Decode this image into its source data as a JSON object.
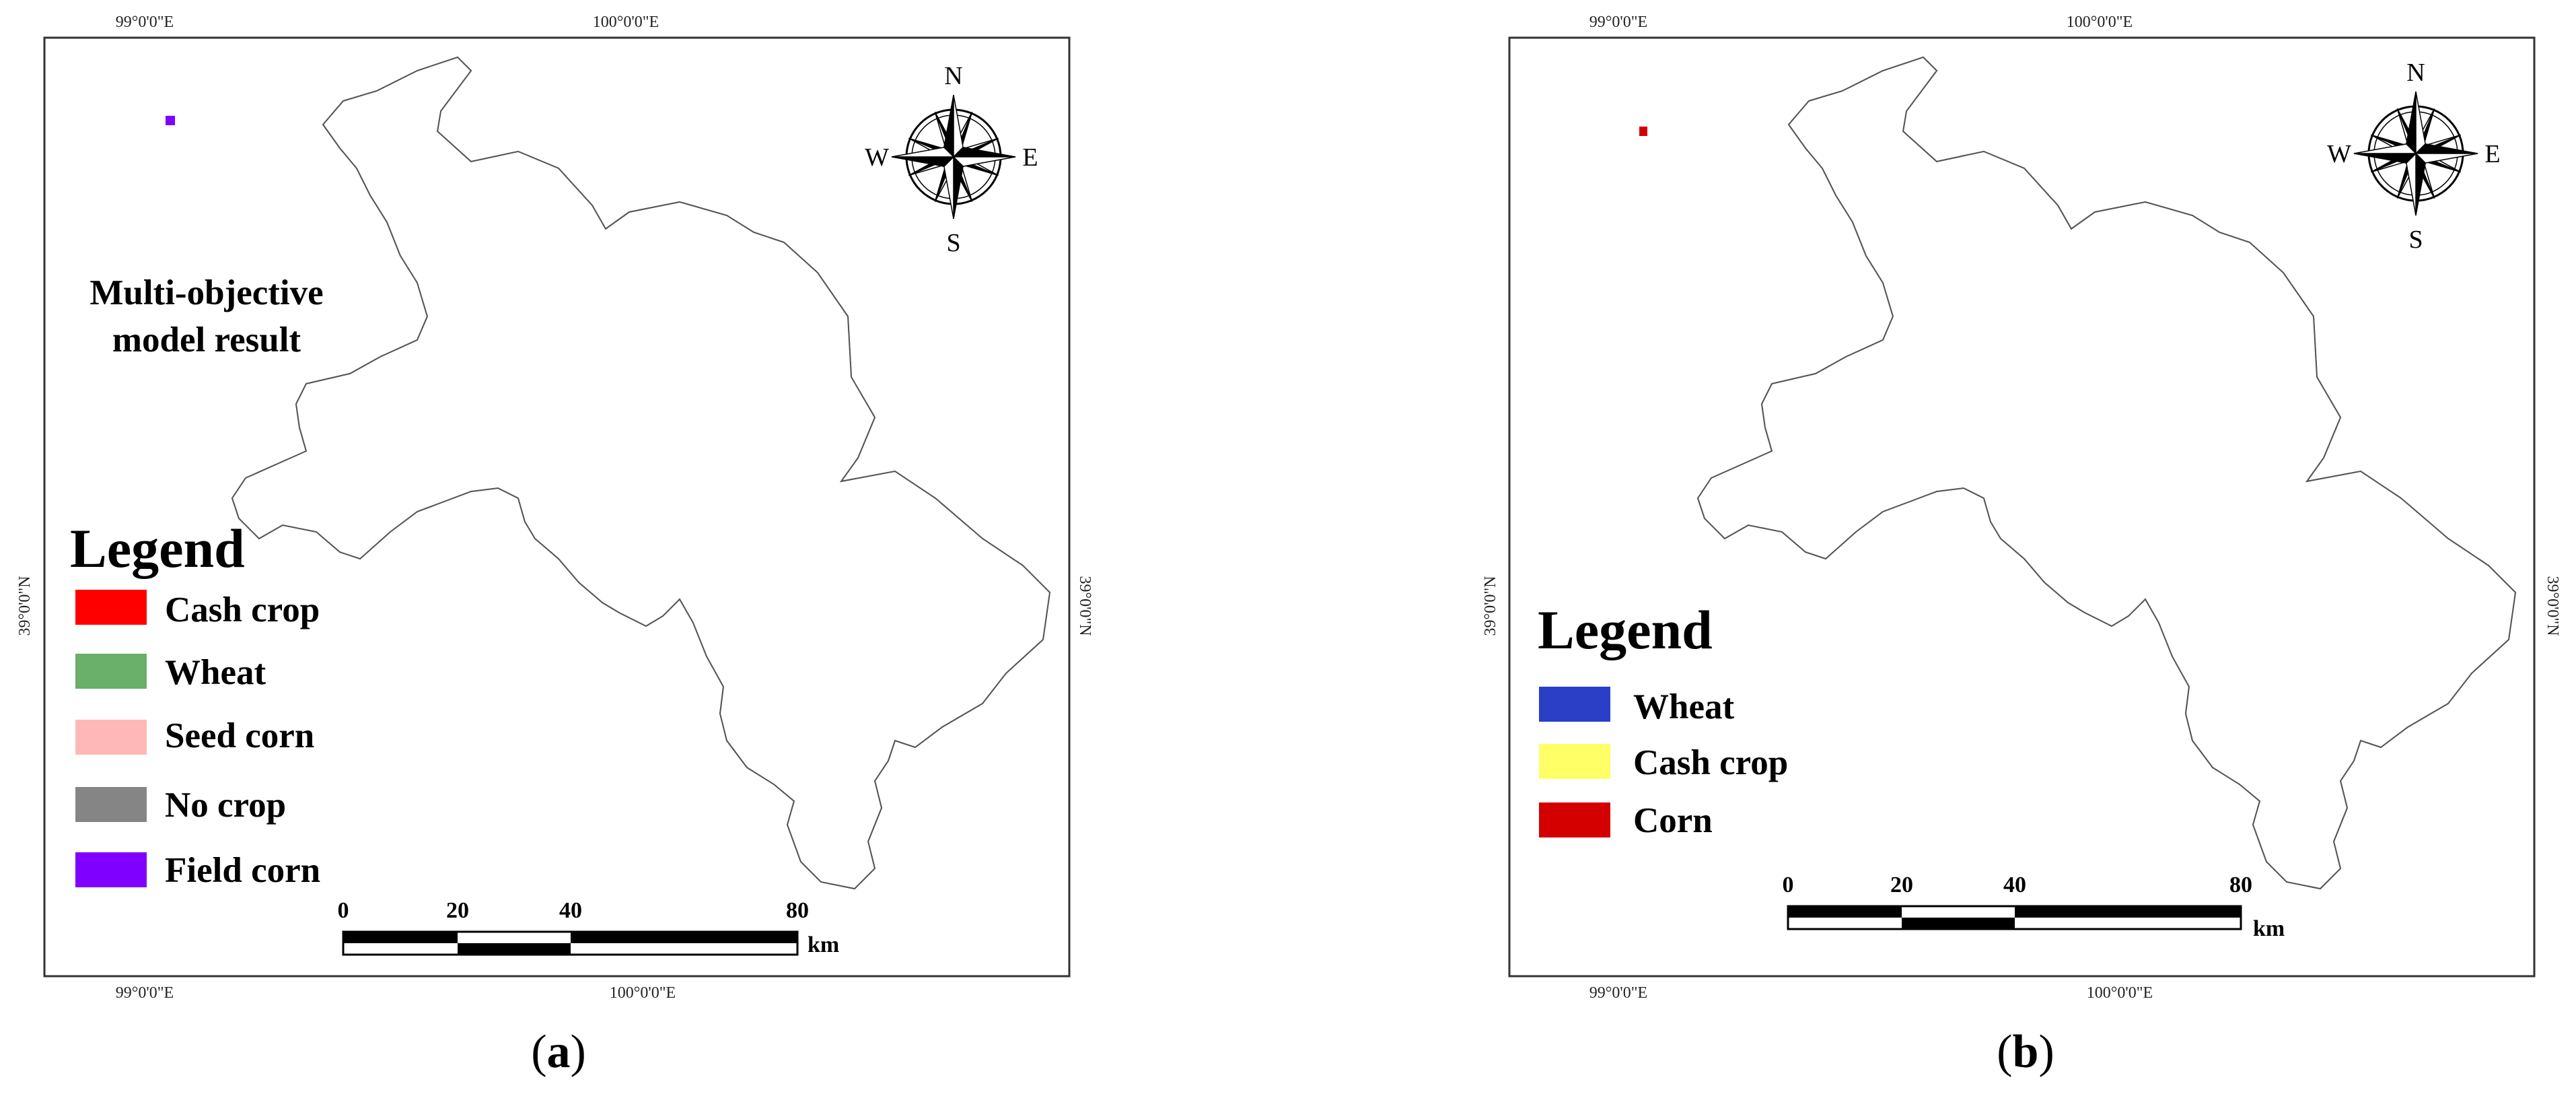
{
  "panels": [
    {
      "id": "a",
      "caption_letter": "a",
      "map_title": [
        "Multi-objective",
        "model result"
      ],
      "coord_labels": {
        "top_left": "99°0'0\"E",
        "top_mid": "100°0'0\"E",
        "bottom_left": "99°0'0\"E",
        "bottom_mid": "100°0'0\"E",
        "left": "39°0'0\"N",
        "right": "39°0'0\"N"
      },
      "compass": {
        "n": "N",
        "s": "S",
        "e": "E",
        "w": "W"
      },
      "legend": {
        "title": "Legend",
        "items": [
          {
            "label": "Cash crop",
            "color": "#ff0000"
          },
          {
            "label": "Wheat",
            "color": "#6aaf6a"
          },
          {
            "label": "Seed corn",
            "color": "#ffb8b8"
          },
          {
            "label": "No crop",
            "color": "#858585"
          },
          {
            "label": "Field corn",
            "color": "#8000ff"
          }
        ]
      },
      "scale_bar": {
        "ticks": [
          "0",
          "20",
          "40",
          "80"
        ],
        "unit": "km"
      }
    },
    {
      "id": "b",
      "caption_letter": "b",
      "coord_labels": {
        "top_left": "99°0'0\"E",
        "top_mid": "100°0'0\"E",
        "bottom_left": "99°0'0\"E",
        "bottom_mid": "100°0'0\"E",
        "left": "39°0'0\"N",
        "right": "39°0'0\"N"
      },
      "compass": {
        "n": "N",
        "s": "S",
        "e": "E",
        "w": "W"
      },
      "legend": {
        "title": "Legend",
        "items": [
          {
            "label": "Wheat",
            "color": "#2a3fc6"
          },
          {
            "label": "Cash crop",
            "color": "#ffff66"
          },
          {
            "label": "Corn",
            "color": "#d40000"
          }
        ]
      },
      "scale_bar": {
        "ticks": [
          "0",
          "20",
          "40",
          "80"
        ],
        "unit": "km"
      }
    }
  ]
}
